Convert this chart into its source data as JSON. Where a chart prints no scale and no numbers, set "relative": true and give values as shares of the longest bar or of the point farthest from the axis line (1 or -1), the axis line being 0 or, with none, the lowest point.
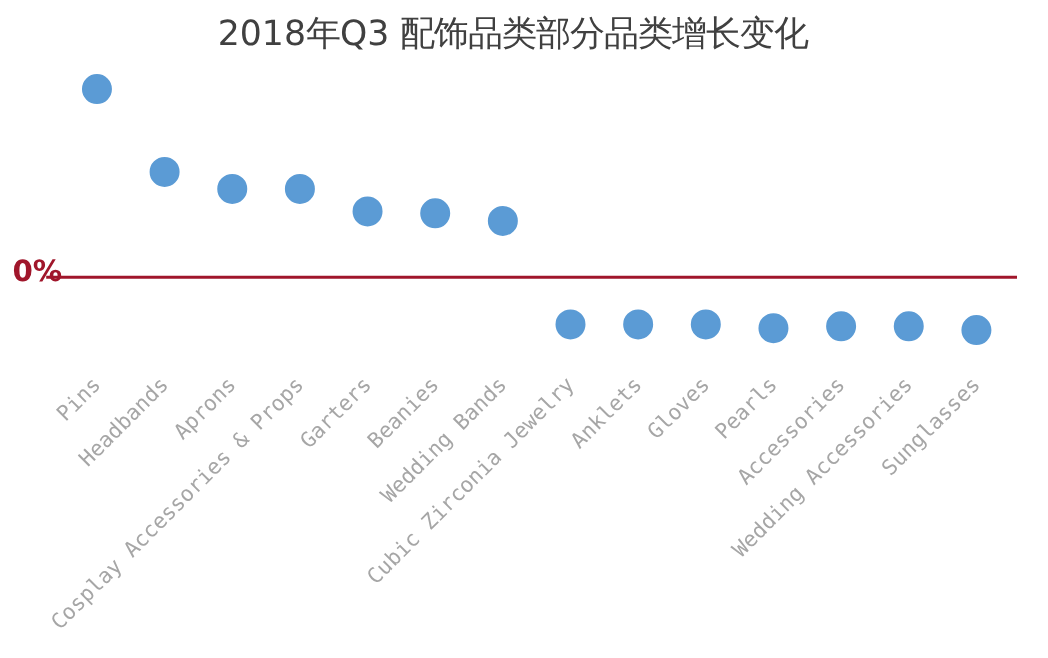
{
  "chart_data": {
    "type": "scatter",
    "title": "2018年Q3 配饰品类部分品类增长变化",
    "relative": true,
    "categories": [
      "Pins",
      "Headbands",
      "Aprons",
      "Cosplay Accessories & Props",
      "Garters",
      "Beanies",
      "Wedding Bands",
      "Cubic Zirconia Jewelry",
      "Anklets",
      "Gloves",
      "Pearls",
      "Accessories",
      "Wedding Accessories",
      "Sunglasses"
    ],
    "values": [
      1,
      0.56,
      0.47,
      0.47,
      0.35,
      0.34,
      0.3,
      -0.25,
      -0.25,
      -0.25,
      -0.27,
      -0.26,
      -0.26,
      -0.28
    ],
    "color": "#5b9bd5",
    "marker": "circle",
    "grid": false,
    "ref_lines": [
      {
        "axis": "y",
        "value": 0,
        "label": "0%",
        "color": "#a0162b",
        "line_style": "solid"
      }
    ]
  }
}
